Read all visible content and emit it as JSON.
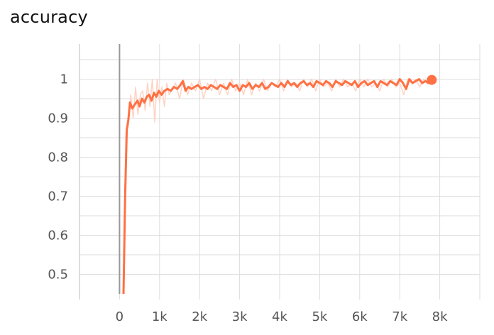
{
  "chart_data": {
    "type": "line",
    "title": "accuracy",
    "xlabel": "",
    "ylabel": "",
    "xlim": [
      -1000,
      9000
    ],
    "ylim": [
      0.45,
      1.09
    ],
    "x_ticks": [
      0,
      1000,
      2000,
      3000,
      4000,
      5000,
      6000,
      7000,
      8000
    ],
    "x_tick_labels": [
      "0",
      "1k",
      "2k",
      "3k",
      "4k",
      "5k",
      "6k",
      "7k",
      "8k"
    ],
    "y_ticks": [
      0.5,
      0.6,
      0.7,
      0.8,
      0.9,
      1.0
    ],
    "y_tick_labels": [
      "0.5",
      "0.6",
      "0.7",
      "0.8",
      "0.9",
      "1"
    ],
    "grid": true,
    "colors": {
      "smoothed": "#ff7043",
      "raw": "#ffd3c4",
      "grid": "#dddddd",
      "axis": "#999999"
    },
    "series": [
      {
        "role": "smoothed",
        "x": [
          100,
          140,
          180,
          220,
          260,
          320,
          380,
          450,
          500,
          560,
          620,
          680,
          740,
          800,
          860,
          920,
          980,
          1050,
          1120,
          1200,
          1280,
          1360,
          1440,
          1520,
          1580,
          1650,
          1720,
          1800,
          1880,
          1960,
          2040,
          2120,
          2200,
          2280,
          2360,
          2440,
          2520,
          2600,
          2680,
          2760,
          2840,
          2920,
          3000,
          3080,
          3160,
          3240,
          3320,
          3400,
          3480,
          3560,
          3640,
          3720,
          3800,
          3880,
          3960,
          4040,
          4120,
          4200,
          4280,
          4360,
          4440,
          4520,
          4600,
          4680,
          4760,
          4840,
          4920,
          5000,
          5080,
          5160,
          5240,
          5320,
          5400,
          5480,
          5560,
          5640,
          5720,
          5800,
          5880,
          5960,
          6040,
          6120,
          6200,
          6280,
          6360,
          6440,
          6520,
          6600,
          6680,
          6760,
          6840,
          6920,
          7000,
          7080,
          7160,
          7240,
          7320,
          7400,
          7480,
          7560,
          7640,
          7720,
          7800
        ],
        "y": [
          0.45,
          0.7,
          0.87,
          0.895,
          0.94,
          0.925,
          0.935,
          0.945,
          0.93,
          0.95,
          0.94,
          0.955,
          0.96,
          0.945,
          0.965,
          0.955,
          0.97,
          0.96,
          0.97,
          0.975,
          0.97,
          0.98,
          0.975,
          0.985,
          0.995,
          0.97,
          0.98,
          0.975,
          0.98,
          0.985,
          0.975,
          0.98,
          0.975,
          0.985,
          0.98,
          0.975,
          0.985,
          0.98,
          0.975,
          0.99,
          0.98,
          0.985,
          0.97,
          0.985,
          0.98,
          0.99,
          0.975,
          0.985,
          0.98,
          0.99,
          0.975,
          0.98,
          0.99,
          0.985,
          0.98,
          0.99,
          0.98,
          0.995,
          0.985,
          0.99,
          0.98,
          0.99,
          0.995,
          0.985,
          0.99,
          0.98,
          0.995,
          0.99,
          0.985,
          0.995,
          0.99,
          0.98,
          0.995,
          0.99,
          0.985,
          0.995,
          0.99,
          0.985,
          0.995,
          0.98,
          0.99,
          0.995,
          0.985,
          0.99,
          0.995,
          0.98,
          0.995,
          0.99,
          0.985,
          0.995,
          0.99,
          0.985,
          1.0,
          0.99,
          0.975,
          1.0,
          0.99,
          0.995,
          1.0,
          0.99,
          0.995,
          0.99,
          0.998
        ]
      },
      {
        "role": "raw",
        "x": [
          100,
          160,
          220,
          280,
          340,
          400,
          460,
          520,
          580,
          640,
          700,
          760,
          820,
          880,
          940,
          1000,
          1060,
          1120,
          1180,
          1240,
          1300,
          1400,
          1500,
          1600,
          1700,
          1800,
          1900,
          2000,
          2100,
          2200,
          2300,
          2400,
          2500,
          2600,
          2700,
          2800,
          2900,
          3000,
          3100,
          3200,
          3300,
          3400,
          3500,
          3600,
          3700,
          3800,
          3900,
          4000,
          4100,
          4200,
          4300,
          4400,
          4500,
          4600,
          4700,
          4800,
          4900,
          5000,
          5100,
          5200,
          5300,
          5400,
          5500,
          5600,
          5700,
          5800,
          5900,
          6000,
          6100,
          6200,
          6300,
          6400,
          6500,
          6600,
          6700,
          6800,
          6900,
          7000,
          7100,
          7200,
          7300,
          7400,
          7500,
          7600,
          7700,
          7800
        ],
        "y": [
          0.45,
          0.86,
          0.88,
          0.96,
          0.9,
          0.98,
          0.91,
          0.96,
          0.97,
          0.92,
          0.99,
          0.93,
          1.0,
          0.89,
          1.0,
          0.94,
          0.98,
          0.93,
          0.99,
          0.96,
          0.97,
          0.99,
          0.95,
          1.0,
          0.96,
          0.99,
          0.97,
          1.0,
          0.95,
          0.99,
          0.97,
          1.0,
          0.96,
          0.99,
          0.96,
          1.0,
          0.97,
          0.99,
          0.96,
          1.0,
          0.96,
          0.99,
          0.97,
          1.0,
          0.97,
          0.99,
          0.98,
          1.0,
          0.97,
          1.0,
          0.98,
          0.99,
          0.97,
          1.0,
          0.98,
          1.0,
          0.97,
          1.0,
          0.98,
          0.99,
          0.97,
          1.0,
          0.98,
          1.0,
          0.98,
          0.99,
          0.97,
          1.0,
          0.98,
          1.0,
          0.98,
          0.99,
          0.97,
          1.0,
          0.98,
          1.0,
          0.98,
          0.99,
          0.96,
          1.0,
          0.99,
          1.0,
          0.98,
          1.0,
          0.99,
          0.998
        ]
      }
    ],
    "end_marker": {
      "x": 7800,
      "y": 0.998
    }
  }
}
